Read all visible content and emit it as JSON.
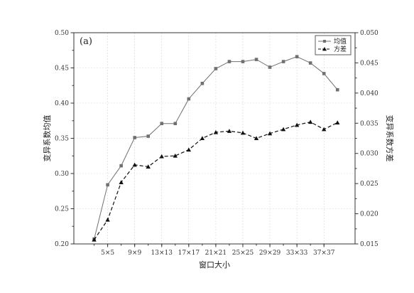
{
  "chart_data": {
    "type": "line",
    "panel_label": "(a)",
    "xlabel": "窗口大小",
    "ylabel": "变异系数均值",
    "y2label": "变异系数方差",
    "x": [
      1,
      2,
      3,
      4,
      5,
      6,
      7,
      8,
      9,
      10,
      11,
      12,
      13,
      14,
      15,
      16,
      17,
      18
    ],
    "x_tick_labels": [
      "5×5",
      "9×9",
      "13×13",
      "17×17",
      "21×21",
      "25×25",
      "29×29",
      "33×33",
      "37×37"
    ],
    "x_tick_positions": [
      2,
      4,
      6,
      8,
      10,
      12,
      14,
      16,
      18
    ],
    "xlim": [
      -0.5,
      20.3
    ],
    "ylim": [
      0.2,
      0.5
    ],
    "y_ticks": [
      "0.20",
      "0.25",
      "0.30",
      "0.35",
      "0.40",
      "0.45",
      "0.50"
    ],
    "y2lim": [
      0.015,
      0.05
    ],
    "y2_ticks": [
      "0.015",
      "0.020",
      "0.025",
      "0.030",
      "0.035",
      "0.040",
      "0.045",
      "0.050"
    ],
    "grid": true,
    "legend_position": "top-right",
    "series": [
      {
        "name": "均值",
        "axis": "left",
        "style": "solid",
        "marker": "square",
        "color": "#707070",
        "x": [
          1,
          2,
          3,
          4,
          5,
          6,
          7,
          8,
          9,
          10,
          11,
          12,
          13,
          14,
          15,
          16,
          17,
          18,
          19
        ],
        "values": [
          0.207,
          0.284,
          0.311,
          0.351,
          0.353,
          0.371,
          0.371,
          0.406,
          0.428,
          0.449,
          0.459,
          0.459,
          0.462,
          0.451,
          0.459,
          0.466,
          0.457,
          0.442,
          0.419
        ]
      },
      {
        "name": "方差",
        "axis": "right",
        "style": "dashed",
        "marker": "triangle",
        "color": "#111111",
        "x": [
          1,
          2,
          3,
          4,
          5,
          6,
          7,
          8,
          9,
          10,
          11,
          12,
          13,
          14,
          15,
          16,
          17,
          18,
          19
        ],
        "values": [
          0.0157,
          0.019,
          0.0252,
          0.0281,
          0.0278,
          0.0295,
          0.0296,
          0.0306,
          0.0325,
          0.0335,
          0.0337,
          0.0334,
          0.0325,
          0.0333,
          0.034,
          0.0347,
          0.0352,
          0.034,
          0.0351
        ]
      }
    ]
  }
}
